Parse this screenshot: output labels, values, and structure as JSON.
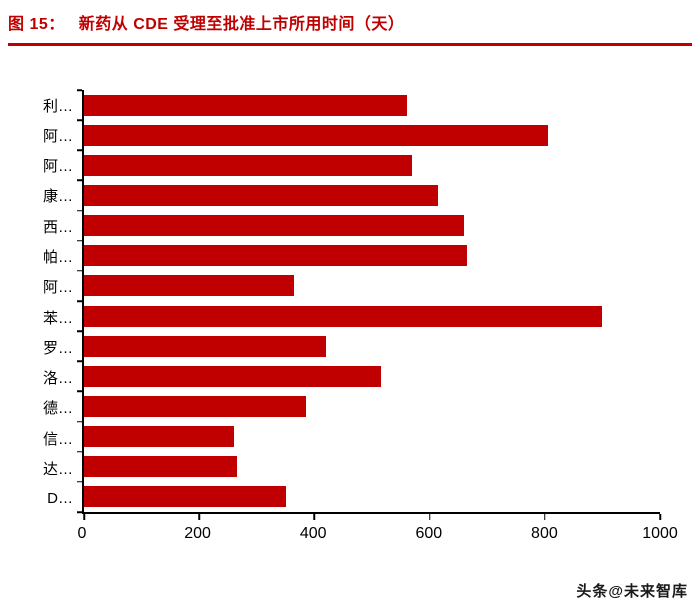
{
  "header": {
    "figure_label": "图 15：",
    "title": "新药从 CDE 受理至批准上市所用时间（天）"
  },
  "watermark": "头条@未来智库",
  "colors": {
    "accent_red": "#C00000",
    "bar": "#C00000",
    "axis": "#000000"
  },
  "chart_data": {
    "type": "bar",
    "orientation": "horizontal",
    "title": "新药从 CDE 受理至批准上市所用时间（天）",
    "categories": [
      "利…",
      "阿…",
      "阿…",
      "康…",
      "西…",
      "帕…",
      "阿…",
      "苯…",
      "罗…",
      "洛…",
      "德…",
      "信…",
      "达…",
      "D…"
    ],
    "values": [
      560,
      805,
      570,
      615,
      660,
      665,
      365,
      900,
      420,
      515,
      385,
      260,
      265,
      350
    ],
    "xlabel": "",
    "ylabel": "",
    "xlim": [
      0,
      1000
    ],
    "x_ticks": [
      0,
      200,
      400,
      600,
      800,
      1000
    ],
    "grid": false,
    "legend": false
  }
}
